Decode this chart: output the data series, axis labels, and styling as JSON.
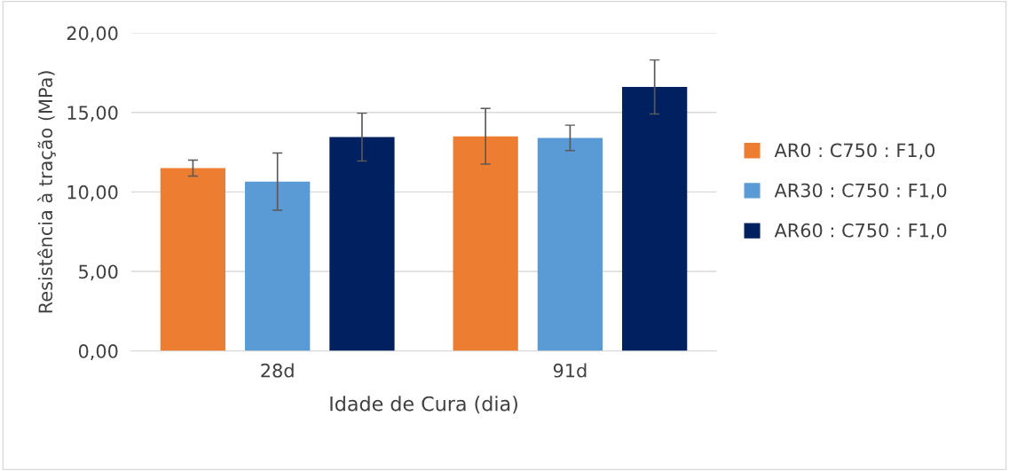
{
  "chart_data": {
    "type": "bar",
    "xlabel": "Idade de Cura (dia)",
    "ylabel": "Resistência à tração (MPa)",
    "categories": [
      "28d",
      "91d"
    ],
    "series": [
      {
        "name": "AR0 : C750 : F1,0",
        "color": "#ed7d31",
        "values": [
          11.5,
          13.5
        ],
        "errors": [
          0.5,
          1.75
        ]
      },
      {
        "name": "AR30 : C750 : F1,0",
        "color": "#5b9bd5",
        "values": [
          10.65,
          13.4
        ],
        "errors": [
          1.8,
          0.8
        ]
      },
      {
        "name": "AR60 : C750 : F1,0",
        "color": "#002060",
        "values": [
          13.45,
          16.6
        ],
        "errors": [
          1.5,
          1.7
        ]
      }
    ],
    "ylim": [
      0,
      20
    ],
    "yticks": [
      {
        "value": 0,
        "label": "0,00"
      },
      {
        "value": 5,
        "label": "5,00"
      },
      {
        "value": 10,
        "label": "10,00"
      },
      {
        "value": 15,
        "label": "15,00"
      },
      {
        "value": 20,
        "label": "20,00"
      }
    ],
    "grid": "y",
    "legend": "right"
  }
}
